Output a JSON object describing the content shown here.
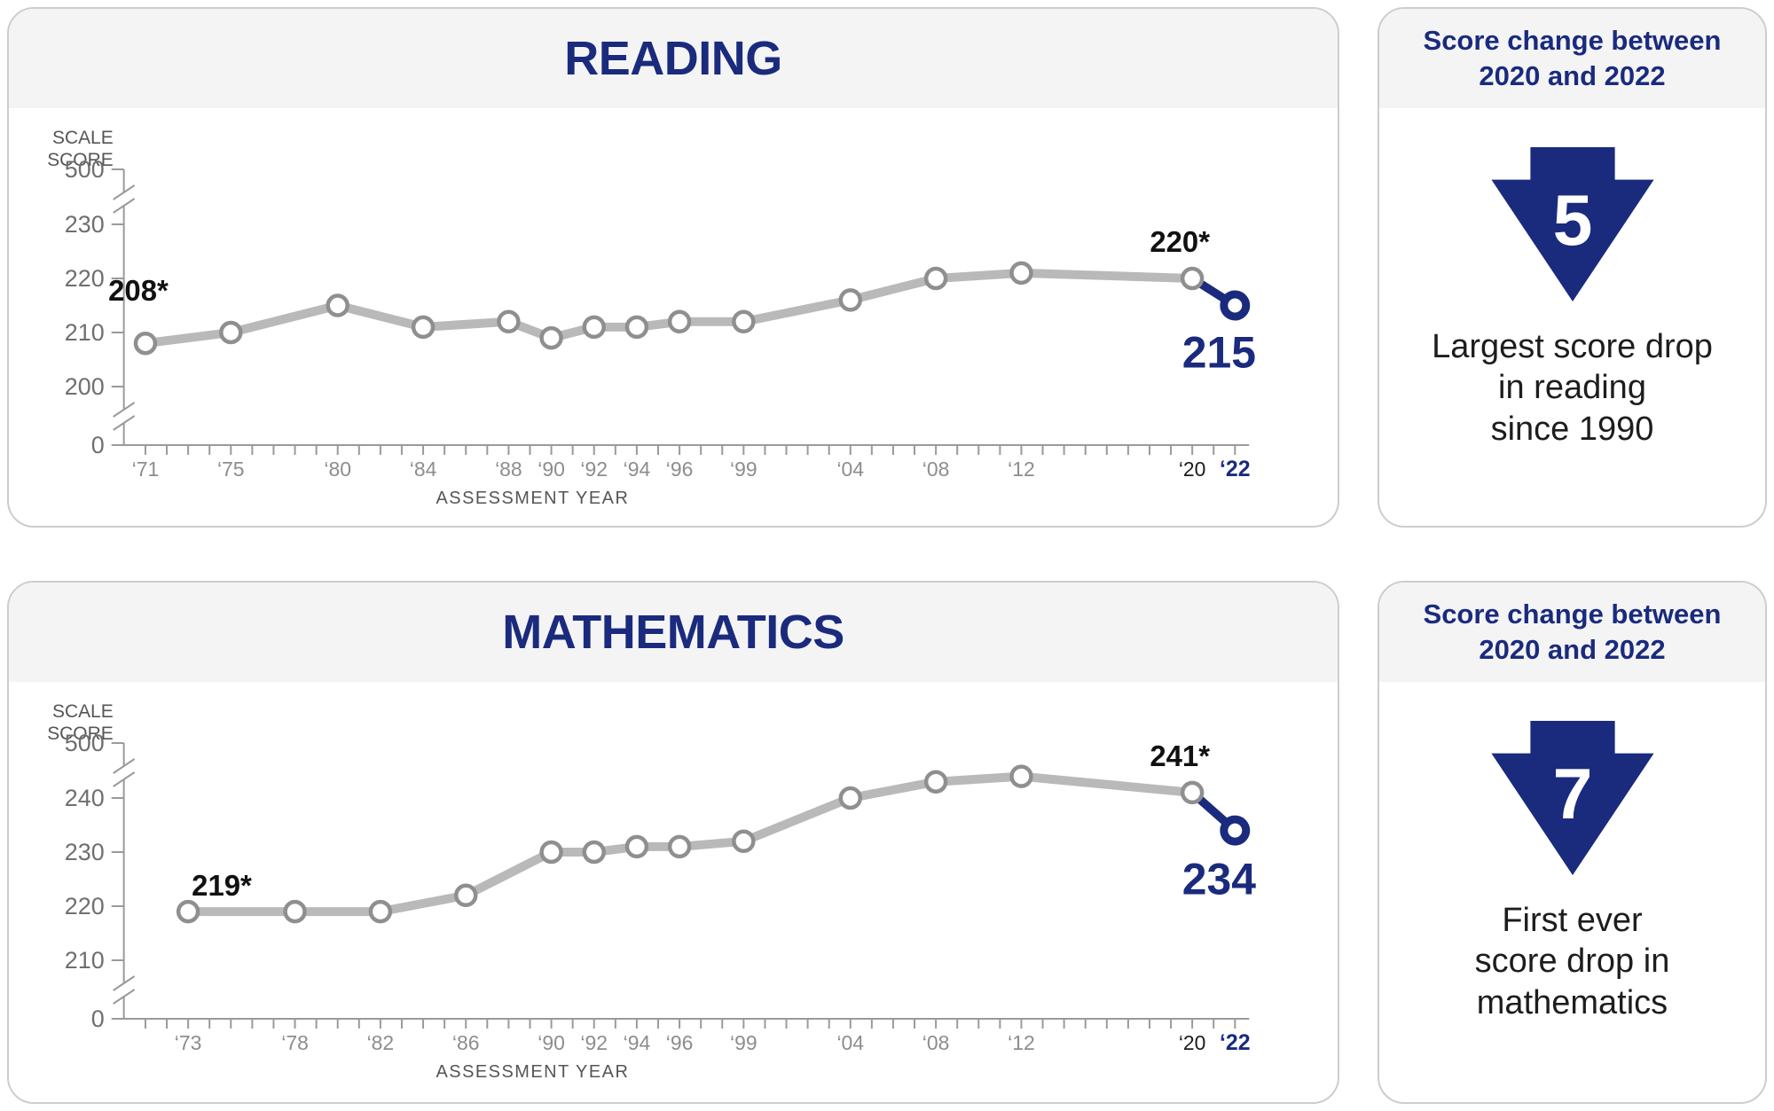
{
  "colors": {
    "navy": "#1a2b7d",
    "line_gray": "#b9b9b9",
    "marker_gray": "#8f8f8f",
    "axis_gray": "#9a9a9a",
    "tick_text": "#6f6f6f",
    "year_text": "#8d8d8d",
    "year_2020_text": "#1c1c1c",
    "point_label_text": "#111111",
    "body_text": "#1d1d1d",
    "panel_border": "#cdcdcd",
    "header_bg": "#f4f4f5",
    "white": "#ffffff"
  },
  "chart_data": [
    {
      "type": "line",
      "title": "READING",
      "ylabel_lines": [
        "SCALE",
        "SCORE"
      ],
      "xlabel": "ASSESSMENT YEAR",
      "y_top_tick": "500",
      "y_bottom_tick": "0",
      "y_mid_ticks": [
        "230",
        "220",
        "210",
        "200"
      ],
      "y_mid_top_value": 230,
      "axis_break": true,
      "grid": false,
      "legend": "none",
      "x": [
        1971,
        1975,
        1980,
        1984,
        1988,
        1990,
        1992,
        1994,
        1996,
        1999,
        2004,
        2008,
        2012,
        2020,
        2022
      ],
      "x_tick_labels": [
        "‘71",
        "‘75",
        "‘80",
        "‘84",
        "‘88",
        "‘90",
        "‘92",
        "‘94",
        "‘96",
        "‘99",
        "‘04",
        "‘08",
        "‘12",
        "‘20",
        "‘22"
      ],
      "values": [
        208,
        210,
        215,
        211,
        212,
        209,
        211,
        211,
        212,
        212,
        216,
        220,
        221,
        220,
        215
      ],
      "first_point_label": "208*",
      "second_last_point_label": "220*",
      "last_point_label": "215",
      "highlight_year": 2022
    },
    {
      "type": "line",
      "title": "MATHEMATICS",
      "ylabel_lines": [
        "SCALE",
        "SCORE"
      ],
      "xlabel": "ASSESSMENT YEAR",
      "y_top_tick": "500",
      "y_bottom_tick": "0",
      "y_mid_ticks": [
        "240",
        "230",
        "220",
        "210"
      ],
      "y_mid_top_value": 240,
      "axis_break": true,
      "grid": false,
      "legend": "none",
      "x": [
        1973,
        1978,
        1982,
        1986,
        1990,
        1992,
        1994,
        1996,
        1999,
        2004,
        2008,
        2012,
        2020,
        2022
      ],
      "x_tick_labels": [
        "‘73",
        "‘78",
        "‘82",
        "‘86",
        "‘90",
        "‘92",
        "‘94",
        "‘96",
        "‘99",
        "‘04",
        "‘08",
        "‘12",
        "‘20",
        "‘22"
      ],
      "values": [
        219,
        219,
        219,
        222,
        230,
        230,
        231,
        231,
        232,
        240,
        243,
        244,
        241,
        234
      ],
      "first_point_label": "219*",
      "second_last_point_label": "241*",
      "last_point_label": "234",
      "highlight_year": 2022
    }
  ],
  "info_panels": [
    {
      "header_lines": [
        "Score change between",
        "2020 and 2022"
      ],
      "drop_value": "5",
      "drop_direction": "down",
      "description_lines": [
        "Largest score drop",
        "in reading",
        "since 1990"
      ]
    },
    {
      "header_lines": [
        "Score change between",
        "2020 and 2022"
      ],
      "drop_value": "7",
      "drop_direction": "down",
      "description_lines": [
        "First ever",
        "score drop in",
        "mathematics"
      ]
    }
  ]
}
